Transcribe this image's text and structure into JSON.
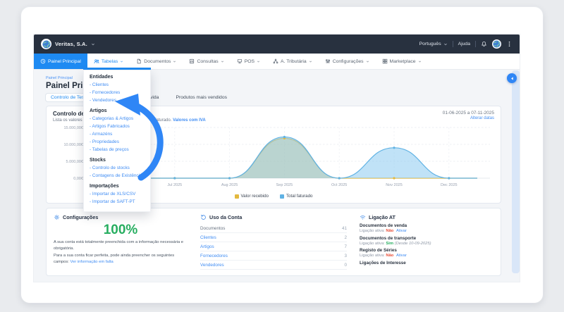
{
  "topbar": {
    "company": "Veritas, S.A.",
    "language": "Português",
    "help_label": "Ajuda"
  },
  "nav": {
    "items": [
      {
        "label": "Painel Principal",
        "icon": "clock",
        "active": true,
        "caret": false
      },
      {
        "label": "Tabelas",
        "icon": "users",
        "open": true,
        "caret": true
      },
      {
        "label": "Documentos",
        "icon": "document",
        "caret": true
      },
      {
        "label": "Consultas",
        "icon": "chart",
        "caret": true
      },
      {
        "label": "POS",
        "icon": "pos",
        "caret": true
      },
      {
        "label": "A. Tributária",
        "icon": "sitemap",
        "caret": true
      },
      {
        "label": "Configurações",
        "icon": "sliders",
        "caret": true
      },
      {
        "label": "Marketplace",
        "icon": "grid",
        "caret": true
      }
    ]
  },
  "dropdown": {
    "sections": [
      {
        "title": "Entidades",
        "items": [
          "Clientes",
          "Fornecedores",
          "Vendedores"
        ]
      },
      {
        "title": "Artigos",
        "items": [
          "Categorias & Artigos",
          "Artigos Fabricados",
          "Armazéns",
          "Propriedades",
          "Tabelas de preços"
        ]
      },
      {
        "title": "Stocks",
        "items": [
          "Controlo de stocks",
          "Contagens de Existências"
        ]
      },
      {
        "title": "Importações",
        "items": [
          "Importar de XLS/CSV",
          "Importar de SAFT-PT"
        ]
      }
    ]
  },
  "page": {
    "breadcrumb": "Painel Principal",
    "title": "Painel Principal",
    "tabs": [
      {
        "label": "Controlo de Tesouraria",
        "active": true
      },
      {
        "label": "Montante em Dívida",
        "active": false
      },
      {
        "label": "Produtos mais vendidos",
        "active": false
      }
    ]
  },
  "treasury_card": {
    "title": "Controlo de Tesouraria",
    "subtitle": "Lista os valores dos documentos pagos e o valor total faturado.",
    "subtitle_link": "Valores com IVA",
    "date_range": "01-06-2025 a 07-11-2025",
    "change_dates_label": "Alterar datas"
  },
  "chart_data": {
    "type": "area",
    "categories": [
      "Jun 2025",
      "Jul 2025",
      "Aug 2025",
      "Sep 2025",
      "Oct 2025",
      "Nov 2025",
      "Dec 2025"
    ],
    "series": [
      {
        "name": "Valor recebido",
        "color": "#E3B93E",
        "fill": "rgba(227,185,62,0.45)",
        "values": [
          0,
          0,
          0,
          11800,
          0,
          0,
          0
        ]
      },
      {
        "name": "Total faturado",
        "color": "#5FB2E4",
        "fill": "rgba(140,203,240,0.55)",
        "values": [
          0,
          0,
          0,
          12200,
          0,
          9000,
          0
        ]
      }
    ],
    "ylim": [
      0,
      15000
    ],
    "y_ticks": [
      {
        "value": 0,
        "label": "0,00€"
      },
      {
        "value": 5000,
        "label": "5.000,00€"
      },
      {
        "value": 10000,
        "label": "10.000,00€"
      },
      {
        "value": 15000,
        "label": "15.000,00€"
      }
    ],
    "grid": "dashed",
    "legend_position": "bottom"
  },
  "account_setup": {
    "title": "Configurações",
    "percent": "100%",
    "percent_color": "#27ae60",
    "text1": "A sua conta está totalmente preenchida com a informação necessária e obrigatória.",
    "text2": "Para a sua conta ficar perfeita, pode ainda preencher os seguintes campos:",
    "link": "Ver informação em falta"
  },
  "usage": {
    "title": "Uso da Conta",
    "rows": [
      {
        "label": "Documentos",
        "value": "41",
        "link": false
      },
      {
        "label": "Clientes",
        "value": "2",
        "link": true
      },
      {
        "label": "Artigos",
        "value": "7",
        "link": true
      },
      {
        "label": "Fornecedores",
        "value": "3",
        "link": true
      },
      {
        "label": "Vendedores",
        "value": "0",
        "link": true
      }
    ]
  },
  "at_link": {
    "title": "Ligação AT",
    "status_label": "Ligação ativa:",
    "entries": [
      {
        "name": "Documentos de venda",
        "status": "Não",
        "status_color": "#e8503a",
        "action": "Ativar"
      },
      {
        "name": "Documentos de transporte",
        "status": "Sim",
        "status_color": "#27ae60",
        "note": "(Desde 10-09-2025)"
      },
      {
        "name": "Registo de Séries",
        "status": "Não",
        "status_color": "#e8503a",
        "action": "Ativar"
      },
      {
        "name": "Ligações de Interesse"
      }
    ]
  },
  "colors": {
    "topbar": "#28313f",
    "accent_blue": "#1e8af2",
    "link_blue": "#3f8cf3",
    "annotation_blue": "#2f86f6",
    "green": "#27ae60",
    "red": "#e8503a"
  }
}
